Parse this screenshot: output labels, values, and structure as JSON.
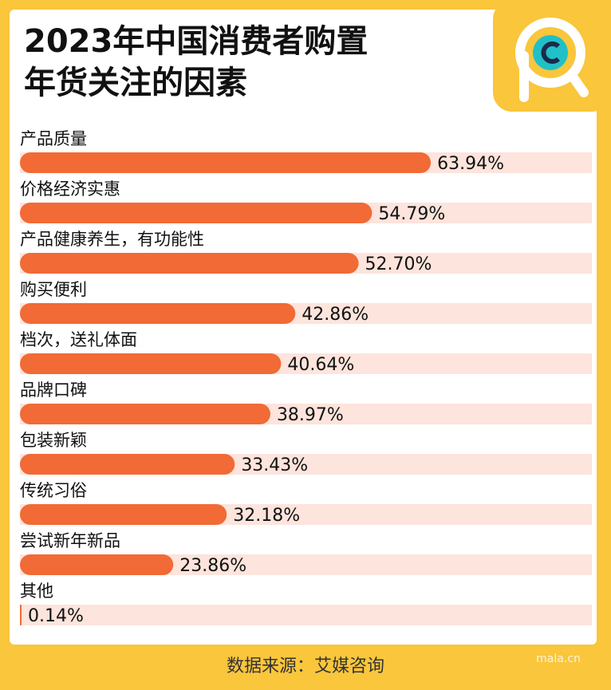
{
  "chart_data": {
    "type": "bar",
    "orientation": "horizontal",
    "title": "2023年中国消费者购置\n年货关注的因素",
    "categories": [
      "产品质量",
      "价格经济实惠",
      "产品健康养生，有功能性",
      "购买便利",
      "档次，送礼体面",
      "品牌口碑",
      "包装新颖",
      "传统习俗",
      "尝试新年新品",
      "其他"
    ],
    "values": [
      63.94,
      54.79,
      52.7,
      42.86,
      40.64,
      38.97,
      33.43,
      32.18,
      23.86,
      0.14
    ],
    "value_labels": [
      "63.94%",
      "54.79%",
      "52.70%",
      "42.86%",
      "40.64%",
      "38.97%",
      "33.43%",
      "32.18%",
      "23.86%",
      "0.14%"
    ],
    "color": "#f26a35",
    "track_color": "#fde4dc",
    "xlim": [
      0,
      89
    ],
    "source": "数据来源：艾媒咨询",
    "watermark": "mala.cn"
  }
}
